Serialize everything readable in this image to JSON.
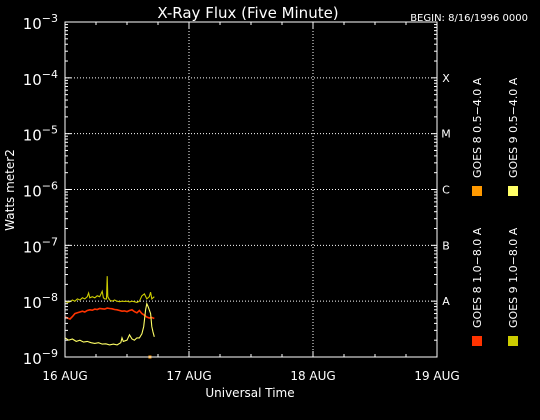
{
  "chart_data": {
    "type": "line",
    "title": "X-Ray Flux (Five Minute)",
    "begin_label": "BEGIN: 8/16/1996 0000",
    "xlabel": "Universal Time",
    "ylabel": "Watts meter2",
    "x_ticks": [
      "16 AUG",
      "17 AUG",
      "18 AUG",
      "19 AUG"
    ],
    "x_range_days": [
      0,
      3
    ],
    "y_scale": "log",
    "y_range": [
      1e-09,
      0.001
    ],
    "y_ticks": [
      {
        "base": "10",
        "exp": "−9"
      },
      {
        "base": "10",
        "exp": "−8"
      },
      {
        "base": "10",
        "exp": "−7"
      },
      {
        "base": "10",
        "exp": "−6"
      },
      {
        "base": "10",
        "exp": "−5"
      },
      {
        "base": "10",
        "exp": "−4"
      },
      {
        "base": "10",
        "exp": "−3"
      }
    ],
    "flare_classes": [
      {
        "label": "A",
        "value": 1e-08
      },
      {
        "label": "B",
        "value": 1e-07
      },
      {
        "label": "C",
        "value": 1e-06
      },
      {
        "label": "M",
        "value": 1e-05
      },
      {
        "label": "X",
        "value": 0.0001
      }
    ],
    "grid": true,
    "legend_position": "right, rotated vertical",
    "series": [
      {
        "name": "GOES 8 1.0−8.0 A",
        "color": "#ff3300",
        "points": [
          [
            0.0,
            5.2e-09
          ],
          [
            0.02,
            5e-09
          ],
          [
            0.04,
            4.8e-09
          ],
          [
            0.06,
            5.3e-09
          ],
          [
            0.08,
            6e-09
          ],
          [
            0.1,
            6.2e-09
          ],
          [
            0.12,
            6.4e-09
          ],
          [
            0.14,
            6.6e-09
          ],
          [
            0.16,
            6.4e-09
          ],
          [
            0.18,
            6.8e-09
          ],
          [
            0.2,
            7e-09
          ],
          [
            0.22,
            6.9e-09
          ],
          [
            0.24,
            7.2e-09
          ],
          [
            0.26,
            7.1e-09
          ],
          [
            0.28,
            7.4e-09
          ],
          [
            0.3,
            7.3e-09
          ],
          [
            0.32,
            7.2e-09
          ],
          [
            0.34,
            7.5e-09
          ],
          [
            0.36,
            7.4e-09
          ],
          [
            0.38,
            7.3e-09
          ],
          [
            0.4,
            7.1e-09
          ],
          [
            0.42,
            7e-09
          ],
          [
            0.44,
            6.8e-09
          ],
          [
            0.46,
            6.6e-09
          ],
          [
            0.48,
            6.7e-09
          ],
          [
            0.5,
            6.5e-09
          ],
          [
            0.52,
            6.8e-09
          ],
          [
            0.54,
            7e-09
          ],
          [
            0.56,
            6.5e-09
          ],
          [
            0.58,
            6.2e-09
          ],
          [
            0.6,
            6.8e-09
          ],
          [
            0.62,
            6e-09
          ],
          [
            0.64,
            5.6e-09
          ],
          [
            0.66,
            5.2e-09
          ],
          [
            0.68,
            5e-09
          ],
          [
            0.7,
            5.1e-09
          ],
          [
            0.72,
            4.9e-09
          ]
        ]
      },
      {
        "name": "GOES 8 0.5−4.0 A",
        "color": "#ff9900",
        "points": [
          [
            0.685,
            1e-09
          ]
        ]
      },
      {
        "name": "GOES 9 1.0−8.0 A",
        "color": "#cccc00",
        "points": [
          [
            0.0,
            1e-08
          ],
          [
            0.02,
            9.5e-09
          ],
          [
            0.04,
            9.8e-09
          ],
          [
            0.06,
            1.05e-08
          ],
          [
            0.08,
            1e-08
          ],
          [
            0.1,
            1.1e-08
          ],
          [
            0.12,
            1.05e-08
          ],
          [
            0.14,
            1.15e-08
          ],
          [
            0.16,
            1.1e-08
          ],
          [
            0.18,
            1.2e-08
          ],
          [
            0.19,
            1.4e-08
          ],
          [
            0.2,
            1.15e-08
          ],
          [
            0.22,
            1.2e-08
          ],
          [
            0.24,
            1.15e-08
          ],
          [
            0.26,
            1.25e-08
          ],
          [
            0.28,
            1.2e-08
          ],
          [
            0.3,
            1.5e-08
          ],
          [
            0.31,
            1.15e-08
          ],
          [
            0.32,
            1.1e-08
          ],
          [
            0.335,
            1.1e-08
          ],
          [
            0.34,
            2.8e-08
          ],
          [
            0.345,
            1.2e-08
          ],
          [
            0.36,
            1.05e-08
          ],
          [
            0.38,
            1e-08
          ],
          [
            0.4,
            1.05e-08
          ],
          [
            0.42,
            1e-08
          ],
          [
            0.44,
            9.8e-09
          ],
          [
            0.46,
            1e-08
          ],
          [
            0.48,
            9.9e-09
          ],
          [
            0.5,
            1e-08
          ],
          [
            0.52,
            9.7e-09
          ],
          [
            0.54,
            1e-08
          ],
          [
            0.56,
            9.8e-09
          ],
          [
            0.58,
            9.5e-09
          ],
          [
            0.6,
            1e-08
          ],
          [
            0.62,
            1.25e-08
          ],
          [
            0.64,
            1.35e-08
          ],
          [
            0.66,
            1.1e-08
          ],
          [
            0.68,
            1.2e-08
          ],
          [
            0.69,
            1.45e-08
          ],
          [
            0.7,
            1.1e-08
          ],
          [
            0.72,
            1.2e-08
          ]
        ]
      },
      {
        "name": "GOES 9 0.5−4.0 A",
        "color": "#ffff66",
        "points": [
          [
            0.0,
            2.2e-09
          ],
          [
            0.03,
            2e-09
          ],
          [
            0.06,
            2.1e-09
          ],
          [
            0.09,
            1.9e-09
          ],
          [
            0.12,
            2e-09
          ],
          [
            0.15,
            1.85e-09
          ],
          [
            0.18,
            1.9e-09
          ],
          [
            0.21,
            1.8e-09
          ],
          [
            0.24,
            1.75e-09
          ],
          [
            0.27,
            1.8e-09
          ],
          [
            0.3,
            1.7e-09
          ],
          [
            0.33,
            1.72e-09
          ],
          [
            0.36,
            1.65e-09
          ],
          [
            0.39,
            1.7e-09
          ],
          [
            0.42,
            1.65e-09
          ],
          [
            0.45,
            1.8e-09
          ],
          [
            0.46,
            2.2e-09
          ],
          [
            0.47,
            1.9e-09
          ],
          [
            0.5,
            2e-09
          ],
          [
            0.52,
            2.5e-09
          ],
          [
            0.54,
            2.1e-09
          ],
          [
            0.56,
            2e-09
          ],
          [
            0.58,
            2.2e-09
          ],
          [
            0.6,
            2.2e-09
          ],
          [
            0.62,
            2.6e-09
          ],
          [
            0.635,
            3.5e-09
          ],
          [
            0.65,
            7e-09
          ],
          [
            0.66,
            9e-09
          ],
          [
            0.67,
            8e-09
          ],
          [
            0.69,
            6e-09
          ],
          [
            0.7,
            3.5e-09
          ],
          [
            0.71,
            2.8e-09
          ],
          [
            0.72,
            2.3e-09
          ]
        ]
      }
    ]
  }
}
